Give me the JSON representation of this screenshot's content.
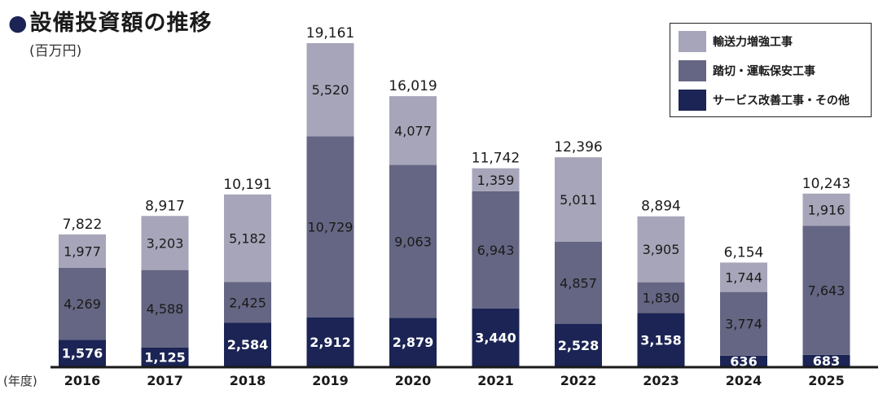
{
  "title": "●設備投資額の推移",
  "unit": "(百万円)",
  "xlabel": "(年度)",
  "colors": {
    "capacity": "#a7a5b9",
    "crossing": "#656683",
    "service": "#1b2454",
    "axis": "#1a1a1a"
  },
  "chart_data": {
    "type": "bar",
    "stacked": true,
    "title": "設備投資額の推移",
    "ylabel": "(百万円)",
    "xlabel": "(年度)",
    "categories": [
      "2016",
      "2017",
      "2018",
      "2019",
      "2020",
      "2021",
      "2022",
      "2023",
      "2024",
      "2025"
    ],
    "series": [
      {
        "name": "サービス改善工事・その他",
        "color": "#1b2454",
        "values": [
          1576,
          1125,
          2584,
          2912,
          2879,
          3440,
          2528,
          3158,
          636,
          683
        ]
      },
      {
        "name": "踏切・運転保安工事",
        "color": "#656683",
        "values": [
          4269,
          4588,
          2425,
          10729,
          9063,
          6943,
          4857,
          1830,
          3774,
          7643
        ]
      },
      {
        "name": "輸送力増強工事",
        "color": "#a7a5b9",
        "values": [
          1977,
          3203,
          5182,
          5520,
          4077,
          1359,
          5011,
          3905,
          1744,
          1916
        ]
      }
    ],
    "segment_labels": [
      [
        "1,576",
        "1,125",
        "2,584",
        "2,912",
        "2,879",
        "3,440",
        "2,528",
        "3,158",
        "636",
        "683"
      ],
      [
        "4,269",
        "4,588",
        "2,425",
        "10,729",
        "9,063",
        "6,943",
        "4,857",
        "1,830",
        "3,774",
        "7,643"
      ],
      [
        "1,977",
        "3,203",
        "5,182",
        "5,520",
        "4,077",
        "1,359",
        "5,011",
        "3,905",
        "1,744",
        "1,916"
      ]
    ],
    "totals": [
      7822,
      8917,
      10191,
      19161,
      16019,
      11742,
      12396,
      8894,
      6154,
      10243
    ],
    "total_labels": [
      "7,822",
      "8,917",
      "10,191",
      "19,161",
      "16,019",
      "11,742",
      "12,396",
      "8,894",
      "6,154",
      "10,243"
    ],
    "ylim": [
      0,
      19161
    ],
    "grid": false,
    "legend_position": "top-right",
    "legend": [
      "輸送力増強工事",
      "踏切・運転保安工事",
      "サービス改善工事・その他"
    ]
  }
}
